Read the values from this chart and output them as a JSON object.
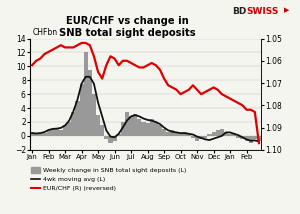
{
  "title_line1": "EUR/CHF vs change in",
  "title_line2": "SNB total sight deposits",
  "ylabel_left": "CHFbn",
  "xlabels": [
    "Jan",
    "Feb",
    "Mar",
    "Apr",
    "May",
    "Jun",
    "Jul",
    "Aug",
    "Sep",
    "Oct",
    "Nov",
    "Dec",
    "Jan",
    "Feb"
  ],
  "ylim_left": [
    -2,
    14
  ],
  "ylim_right": [
    1.1,
    1.05
  ],
  "yticks_left": [
    -2,
    0,
    2,
    4,
    6,
    8,
    10,
    12,
    14
  ],
  "yticks_right": [
    1.1,
    1.09,
    1.08,
    1.07,
    1.06,
    1.05
  ],
  "logo_color_bd": "#222222",
  "logo_color_swiss": "#cc0000",
  "bar_color": "#999999",
  "ma_color": "#111111",
  "eur_color": "#dd0000",
  "weekly_bars": [
    0.5,
    0.3,
    0.2,
    0.4,
    0.8,
    1.0,
    1.2,
    0.9,
    1.5,
    2.0,
    3.5,
    5.0,
    7.5,
    12.0,
    9.5,
    6.0,
    3.0,
    1.5,
    -0.5,
    -1.0,
    -0.8,
    0.3,
    2.0,
    3.5,
    2.8,
    3.2,
    2.5,
    2.0,
    1.8,
    2.5,
    2.0,
    1.5,
    1.0,
    0.5,
    0.8,
    0.5,
    0.3,
    0.5,
    0.2,
    -0.3,
    -0.8,
    -0.5,
    -0.3,
    0.2,
    0.5,
    0.8,
    1.0,
    0.5,
    0.3,
    0.2,
    -0.3,
    -0.5,
    -0.8,
    -1.0,
    -0.5,
    -0.8
  ],
  "ma4_line": [
    0.4,
    0.35,
    0.4,
    0.55,
    0.85,
    1.0,
    1.05,
    1.15,
    1.5,
    2.2,
    3.5,
    5.2,
    7.5,
    8.5,
    8.5,
    7.5,
    4.8,
    2.8,
    0.8,
    -0.1,
    -0.2,
    0.3,
    1.2,
    2.2,
    2.8,
    3.0,
    2.8,
    2.5,
    2.3,
    2.2,
    2.0,
    1.7,
    1.2,
    0.8,
    0.6,
    0.5,
    0.4,
    0.4,
    0.3,
    0.2,
    -0.1,
    -0.3,
    -0.5,
    -0.6,
    -0.4,
    -0.2,
    0.0,
    0.5,
    0.5,
    0.3,
    0.1,
    -0.2,
    -0.5,
    -0.7,
    -0.65,
    -0.8
  ],
  "eur_chf": [
    1.062,
    1.06,
    1.059,
    1.057,
    1.056,
    1.055,
    1.054,
    1.053,
    1.054,
    1.054,
    1.054,
    1.053,
    1.052,
    1.052,
    1.053,
    1.058,
    1.065,
    1.068,
    1.062,
    1.058,
    1.059,
    1.062,
    1.06,
    1.06,
    1.061,
    1.062,
    1.063,
    1.063,
    1.062,
    1.061,
    1.062,
    1.064,
    1.068,
    1.071,
    1.072,
    1.073,
    1.075,
    1.074,
    1.073,
    1.071,
    1.073,
    1.075,
    1.074,
    1.073,
    1.072,
    1.073,
    1.075,
    1.076,
    1.077,
    1.078,
    1.079,
    1.08,
    1.082,
    1.082,
    1.083,
    1.097
  ],
  "month_ticks": [
    0,
    4,
    8,
    12,
    16,
    20,
    24,
    28,
    32,
    36,
    40,
    44,
    48,
    52
  ],
  "n_points": 56
}
